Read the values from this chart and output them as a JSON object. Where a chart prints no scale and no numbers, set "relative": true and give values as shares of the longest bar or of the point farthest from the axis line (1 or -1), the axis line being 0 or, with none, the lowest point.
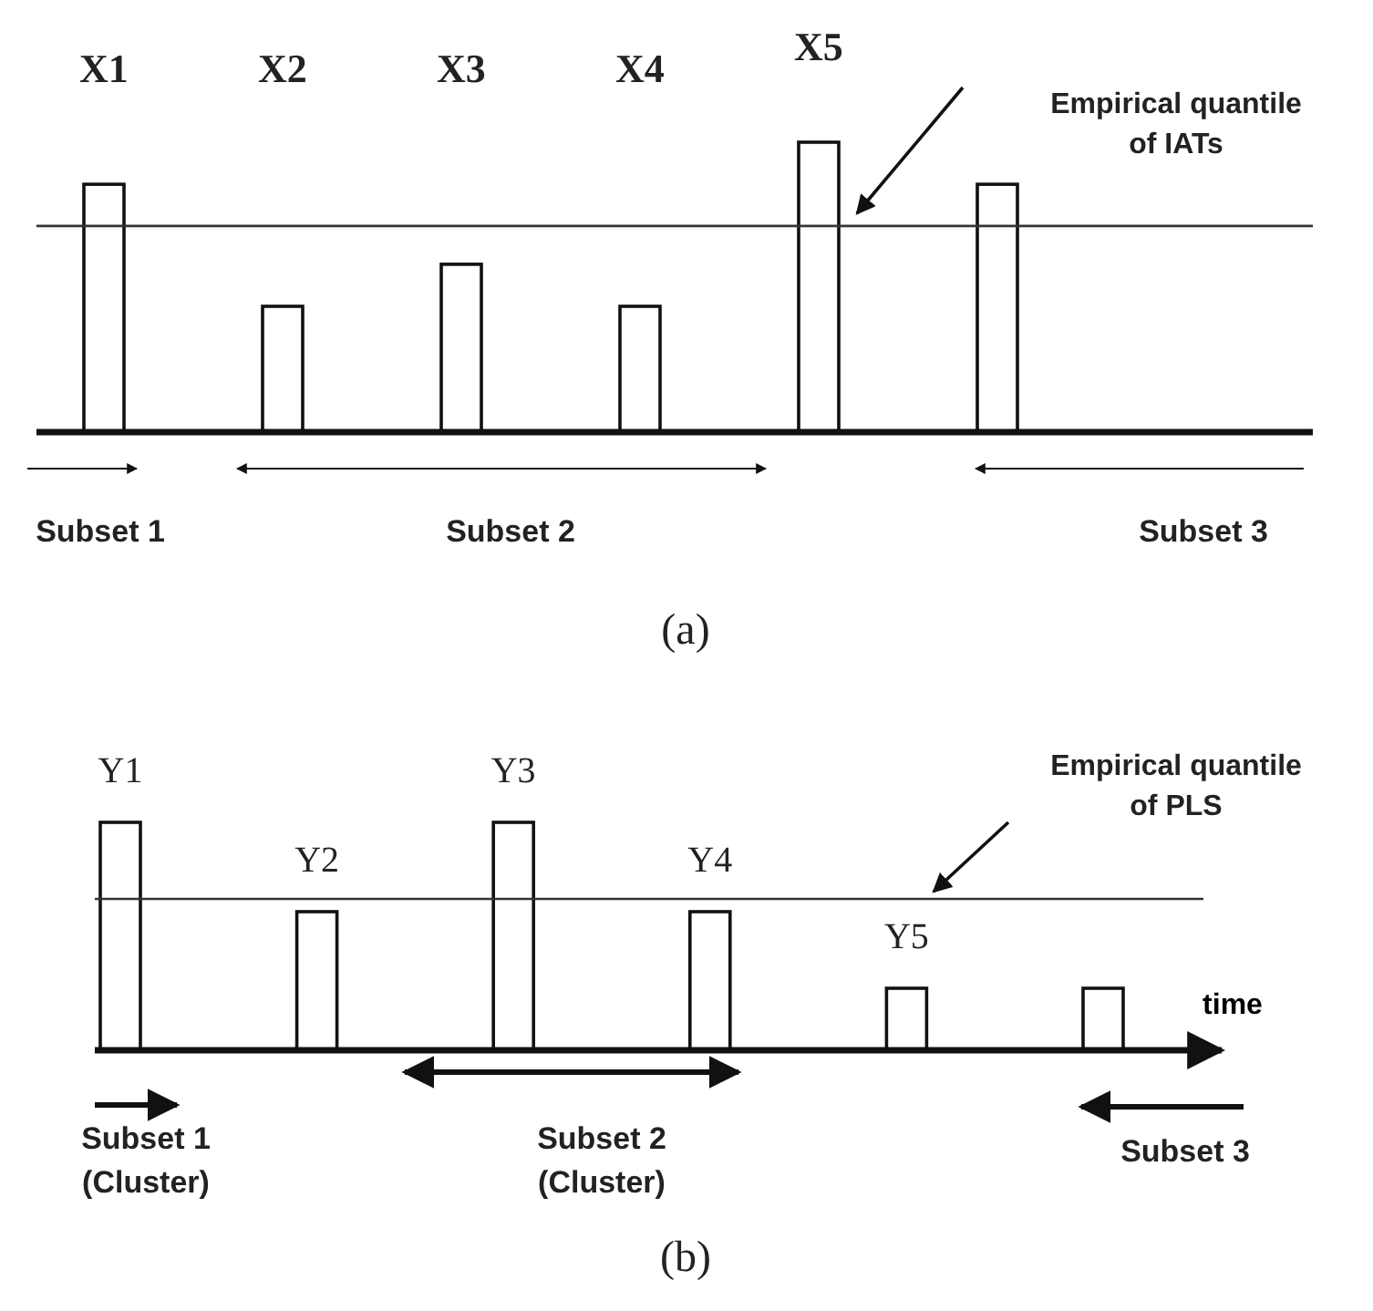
{
  "chart_data": [
    {
      "type": "bar",
      "relative": true,
      "categories": [
        "X1",
        "X2",
        "X3",
        "X4",
        "X5",
        null
      ],
      "values": [
        0.855,
        0.434,
        0.579,
        0.434,
        1,
        0.855
      ],
      "color": "#ffffff",
      "ref_lines": [
        {
          "axis": "y",
          "value": 0.711,
          "label": "Empirical quantile of IATs"
        }
      ],
      "annotations": [
        "Subset 1",
        "Subset 2",
        "Subset 3",
        "(a)"
      ]
    },
    {
      "type": "bar",
      "relative": true,
      "categories": [
        "Y1",
        "Y2",
        "Y3",
        "Y4",
        "Y5",
        null
      ],
      "values": [
        1,
        0.608,
        1,
        0.608,
        0.272,
        0.272
      ],
      "color": "#ffffff",
      "xlabel": "time",
      "ref_lines": [
        {
          "axis": "y",
          "value": 0.664,
          "label": "Empirical quantile of PLS"
        }
      ],
      "annotations": [
        "Subset 1 (Cluster)",
        "Subset 2 (Cluster)",
        "Subset 3",
        "(b)"
      ]
    }
  ]
}
